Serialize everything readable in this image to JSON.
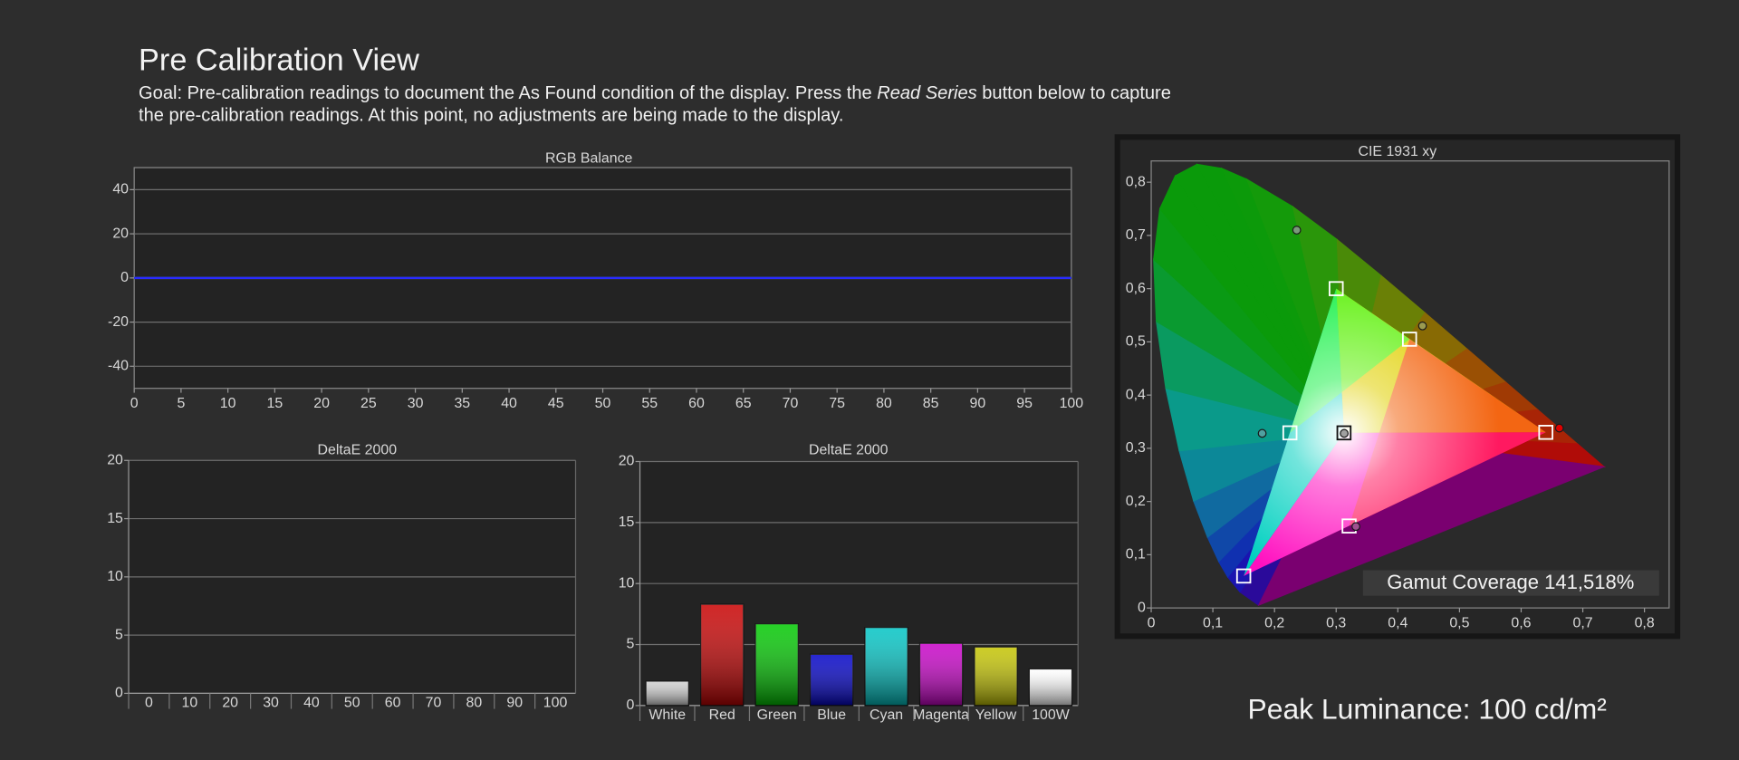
{
  "header": {
    "title": "Pre Calibration View",
    "goal": [
      "Goal: Pre-calibration readings to document the As Found condition of the display. Press the ",
      "Read Series",
      " button below to capture the pre-calibration readings. At this point, no adjustments are being made to the display."
    ]
  },
  "chart_data": [
    {
      "type": "line",
      "title": "RGB Balance",
      "x": [
        0,
        100
      ],
      "series": [
        {
          "color": "#c00000",
          "values": [
            0,
            0
          ]
        },
        {
          "color": "#00a000",
          "values": [
            0,
            0
          ]
        },
        {
          "color": "#2a2aff",
          "values": [
            0,
            0
          ]
        }
      ],
      "xlim": [
        0,
        100
      ],
      "xticks": [
        0,
        5,
        10,
        15,
        20,
        25,
        30,
        35,
        40,
        45,
        50,
        55,
        60,
        65,
        70,
        75,
        80,
        85,
        90,
        95,
        100
      ],
      "ylim": [
        -50,
        50
      ],
      "yticks": [
        -40,
        -20,
        0,
        20,
        40
      ],
      "grid": true
    },
    {
      "type": "bar",
      "title": "DeltaE 2000",
      "categories": [
        "0",
        "10",
        "20",
        "30",
        "40",
        "50",
        "60",
        "70",
        "80",
        "90",
        "100"
      ],
      "values": [
        null,
        null,
        null,
        null,
        null,
        null,
        null,
        null,
        null,
        null,
        null
      ],
      "ylim": [
        0,
        20
      ],
      "yticks": [
        0,
        5,
        10,
        15,
        20
      ],
      "grid": true
    },
    {
      "type": "bar",
      "title": "DeltaE 2000",
      "categories": [
        "White",
        "Red",
        "Green",
        "Blue",
        "Cyan",
        "Magenta",
        "Yellow",
        "100W"
      ],
      "values": [
        2.0,
        8.3,
        6.7,
        4.2,
        6.4,
        5.1,
        4.8,
        3.0
      ],
      "colors": [
        "#cfcfcf",
        "#c80000",
        "#00c800",
        "#0000c8",
        "#00c4c4",
        "#c800c8",
        "#c4c400",
        "#ffffff"
      ],
      "ylim": [
        0,
        20
      ],
      "yticks": [
        0,
        5,
        10,
        15,
        20
      ],
      "grid": true
    },
    {
      "type": "scatter",
      "title": "CIE 1931 xy",
      "series": [
        {
          "marker": "square",
          "colors": [
            "#ffffff",
            "#ffffff",
            "#ffffff",
            "#ffffff",
            "#ffffff",
            "#ffffff",
            "#111111"
          ],
          "x": [
            0.64,
            0.3,
            0.15,
            0.225,
            0.321,
            0.419,
            0.3127
          ],
          "values": [
            0.33,
            0.6,
            0.06,
            0.329,
            0.154,
            0.505,
            0.329
          ]
        },
        {
          "marker": "circle",
          "colors": [
            "#7a9a7a",
            "#9a9a50",
            "#50a0a0",
            "#a0a0a0",
            "#e00000",
            "#a05090"
          ],
          "x": [
            0.236,
            0.44,
            0.18,
            0.313,
            0.662,
            0.332
          ],
          "values": [
            0.71,
            0.53,
            0.328,
            0.328,
            0.338,
            0.153
          ]
        }
      ],
      "xlim": [
        0,
        0.84
      ],
      "xticks": [
        0,
        {
          "value": 0.1,
          "label": "0,1"
        },
        {
          "value": 0.2,
          "label": "0,2"
        },
        {
          "value": 0.3,
          "label": "0,3"
        },
        {
          "value": 0.4,
          "label": "0,4"
        },
        {
          "value": 0.5,
          "label": "0,5"
        },
        {
          "value": 0.6,
          "label": "0,6"
        },
        {
          "value": 0.7,
          "label": "0,7"
        },
        {
          "value": 0.8,
          "label": "0,8"
        }
      ],
      "ylim": [
        0,
        0.84
      ],
      "yticks": [
        0,
        {
          "value": 0.1,
          "label": "0,1"
        },
        {
          "value": 0.2,
          "label": "0,2"
        },
        {
          "value": 0.3,
          "label": "0,3"
        },
        {
          "value": 0.4,
          "label": "0,4"
        },
        {
          "value": 0.5,
          "label": "0,5"
        },
        {
          "value": 0.6,
          "label": "0,6"
        },
        {
          "value": 0.7,
          "label": "0,7"
        },
        {
          "value": 0.8,
          "label": "0,8"
        }
      ],
      "annotation": "Gamut Coverage 141,518%"
    }
  ],
  "footer": {
    "peak_luminance": "Peak Luminance: 100 cd/m²"
  }
}
